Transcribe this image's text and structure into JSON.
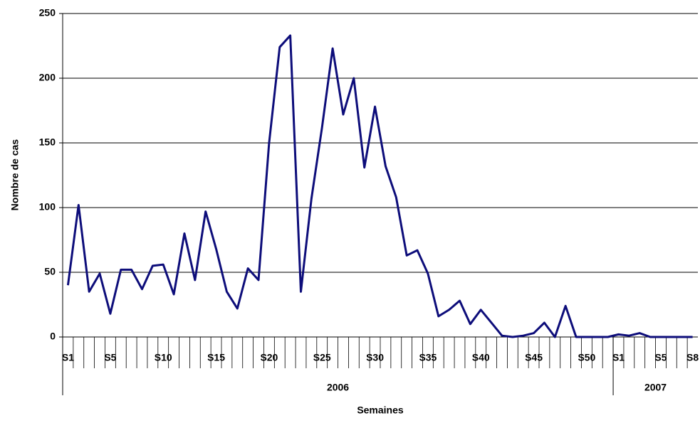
{
  "chart_data": {
    "type": "line",
    "y_label": "Nombre de cas",
    "x_label": "Semaines",
    "categories": [
      "S1",
      null,
      null,
      null,
      "S5",
      null,
      null,
      null,
      null,
      "S10",
      null,
      null,
      null,
      null,
      "S15",
      null,
      null,
      null,
      null,
      "S20",
      null,
      null,
      null,
      null,
      "S25",
      null,
      null,
      null,
      null,
      "S30",
      null,
      null,
      null,
      null,
      "S35",
      null,
      null,
      null,
      null,
      "S40",
      null,
      null,
      null,
      null,
      "S45",
      null,
      null,
      null,
      null,
      "S50",
      null,
      null,
      "S1",
      null,
      null,
      null,
      "S5",
      null,
      null,
      "S8"
    ],
    "year_labels": [
      "2006",
      "2007"
    ],
    "values": [
      40,
      102,
      35,
      49,
      18,
      52,
      52,
      37,
      55,
      56,
      33,
      80,
      44,
      97,
      68,
      35,
      22,
      53,
      44,
      150,
      224,
      233,
      35,
      107,
      162,
      223,
      172,
      200,
      131,
      178,
      132,
      108,
      63,
      67,
      49,
      16,
      21,
      28,
      10,
      21,
      11,
      1,
      0,
      1,
      3,
      11,
      0,
      24,
      0,
      0,
      0,
      0,
      2,
      1,
      3,
      0,
      0,
      0,
      0,
      0
    ],
    "color": "#0d0d7a",
    "ylim": [
      0,
      250
    ],
    "yticks": [
      0,
      50,
      100,
      150,
      200,
      250
    ],
    "grid": true
  }
}
